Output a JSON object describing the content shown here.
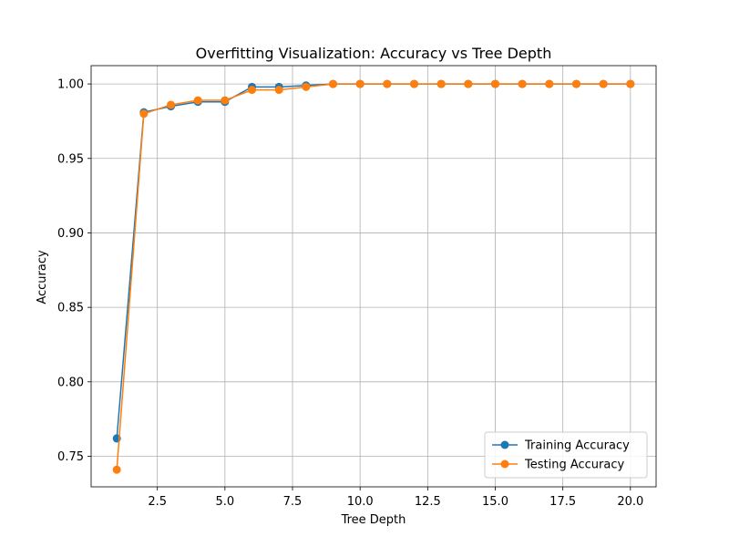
{
  "chart_data": {
    "type": "line",
    "title": "Overfitting Visualization: Accuracy vs Tree Depth",
    "xlabel": "Tree Depth",
    "ylabel": "Accuracy",
    "xlim": [
      0.05,
      20.95
    ],
    "ylim": [
      0.7295,
      1.0123
    ],
    "xticks": [
      2.5,
      5.0,
      7.5,
      10.0,
      12.5,
      15.0,
      17.5,
      20.0
    ],
    "xtick_labels": [
      "2.5",
      "5.0",
      "7.5",
      "10.0",
      "12.5",
      "15.0",
      "17.5",
      "20.0"
    ],
    "yticks": [
      0.75,
      0.8,
      0.85,
      0.9,
      0.95,
      1.0
    ],
    "ytick_labels": [
      "0.75",
      "0.80",
      "0.85",
      "0.90",
      "0.95",
      "1.00"
    ],
    "grid": true,
    "legend_position": "lower-right",
    "x": [
      1,
      2,
      3,
      4,
      5,
      6,
      7,
      8,
      9,
      10,
      11,
      12,
      13,
      14,
      15,
      16,
      17,
      18,
      19,
      20
    ],
    "series": [
      {
        "name": "Training Accuracy",
        "color": "#1f77b4",
        "values": [
          0.762,
          0.981,
          0.985,
          0.988,
          0.988,
          0.998,
          0.998,
          0.999,
          1.0,
          1.0,
          1.0,
          1.0,
          1.0,
          1.0,
          1.0,
          1.0,
          1.0,
          1.0,
          1.0,
          1.0
        ]
      },
      {
        "name": "Testing Accuracy",
        "color": "#ff7f0e",
        "values": [
          0.741,
          0.98,
          0.986,
          0.989,
          0.989,
          0.996,
          0.996,
          0.998,
          1.0,
          1.0,
          1.0,
          1.0,
          1.0,
          1.0,
          1.0,
          1.0,
          1.0,
          1.0,
          1.0,
          1.0
        ]
      }
    ]
  }
}
